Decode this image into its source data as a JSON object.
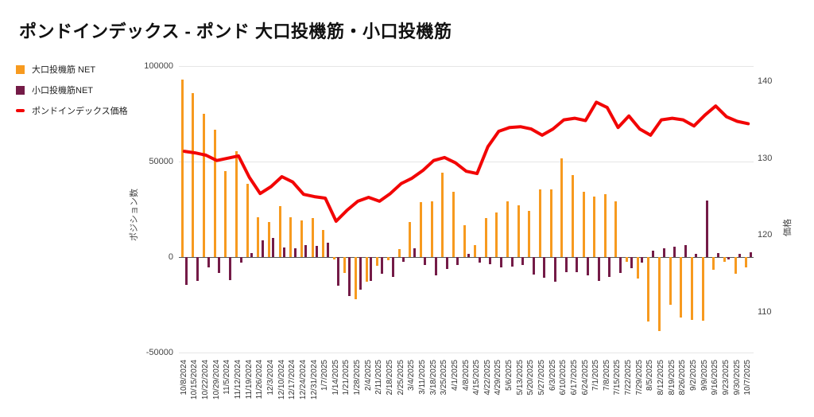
{
  "title": "ポンドインデックス - ポンド 大口投機筋・小口投機筋",
  "legend": [
    {
      "label": "大口投機筋  NET",
      "color": "#F79A1F",
      "kind": "square"
    },
    {
      "label": "小口投機筋NET",
      "color": "#741B47",
      "kind": "square"
    },
    {
      "label": "ポンドインデックス価格",
      "color": "#F20505",
      "kind": "line"
    }
  ],
  "axes": {
    "left": {
      "title": "ポジション数",
      "ticks": [
        100000,
        50000,
        0,
        -50000
      ]
    },
    "right": {
      "title": "価格",
      "ticks": [
        140,
        130,
        120,
        110
      ]
    }
  },
  "colors": {
    "large": "#F79A1F",
    "small": "#741B47",
    "price": "#F20505",
    "grid": "#E6E6E6",
    "zero_line": "#555555",
    "text": "#333333"
  },
  "chart_data": {
    "type": "combo",
    "bar_types": [
      "bar",
      "bar",
      "line"
    ],
    "categories": [
      "10/8/2024",
      "10/15/2024",
      "10/22/2024",
      "10/29/2024",
      "11/5/2024",
      "11/12/2024",
      "11/19/2024",
      "11/26/2024",
      "12/3/2024",
      "12/10/2024",
      "12/17/2024",
      "12/24/2024",
      "12/31/2024",
      "1/7/2025",
      "1/14/2025",
      "1/21/2025",
      "1/28/2025",
      "2/4/2025",
      "2/11/2025",
      "2/18/2025",
      "2/25/2025",
      "3/4/2025",
      "3/11/2025",
      "3/18/2025",
      "3/25/2025",
      "4/1/2025",
      "4/8/2025",
      "4/15/2025",
      "4/22/2025",
      "4/29/2025",
      "5/6/2025",
      "5/13/2025",
      "5/20/2025",
      "5/27/2025",
      "6/3/2025",
      "6/10/2025",
      "6/17/2025",
      "6/24/2025",
      "7/1/2025",
      "7/8/2025",
      "7/15/2025",
      "7/22/2025",
      "7/29/2025",
      "8/5/2025",
      "8/12/2025",
      "8/19/2025",
      "8/26/2025",
      "9/2/2025",
      "9/9/2025",
      "9/16/2025",
      "9/23/2025",
      "9/30/2025",
      "10/7/2025"
    ],
    "series": [
      {
        "name": "大口投機筋  NET",
        "type": "bar",
        "axis": "left",
        "values": [
          93000,
          86000,
          75000,
          66500,
          45000,
          55500,
          38500,
          21000,
          18500,
          26500,
          21000,
          19000,
          20500,
          14000,
          -1300,
          -8500,
          -22000,
          -13000,
          -4700,
          -1700,
          4300,
          18300,
          28800,
          29200,
          44000,
          34200,
          16700,
          6200,
          20400,
          23300,
          29200,
          27100,
          24200,
          35400,
          35400,
          51700,
          42900,
          34200,
          31700,
          33000,
          29200,
          -2700,
          -11200,
          -33700,
          -38700,
          -25000,
          -31700,
          -33100,
          -33300,
          -6500,
          -2500,
          -8700,
          -5400
        ]
      },
      {
        "name": "小口投機筋NET",
        "type": "bar",
        "axis": "left",
        "values": [
          -14500,
          -12500,
          -5500,
          -8200,
          -12100,
          -3000,
          2000,
          8700,
          10000,
          5000,
          4600,
          6200,
          6000,
          7500,
          -14800,
          -20300,
          -17000,
          -12300,
          -8800,
          -10300,
          -2300,
          4600,
          -4300,
          -9600,
          -6200,
          -4300,
          1500,
          -2900,
          -3700,
          -5400,
          -5000,
          -4200,
          -9200,
          -10800,
          -13000,
          -7900,
          -7900,
          -9600,
          -12500,
          -10400,
          -8300,
          -6000,
          -3000,
          3300,
          4600,
          5400,
          6200,
          1700,
          29600,
          2100,
          -1200,
          1700,
          2500
        ]
      },
      {
        "name": "ポンドインデックス価格",
        "type": "line",
        "axis": "right",
        "values": [
          130.9,
          130.7,
          130.4,
          129.7,
          130.0,
          130.3,
          127.5,
          125.4,
          126.3,
          127.6,
          126.9,
          125.3,
          125.0,
          124.8,
          121.8,
          123.2,
          124.4,
          124.9,
          124.4,
          125.4,
          126.7,
          127.4,
          128.4,
          129.7,
          130.1,
          129.4,
          128.3,
          128.0,
          131.5,
          133.5,
          134.0,
          134.1,
          133.8,
          133.0,
          133.8,
          135.0,
          135.2,
          134.9,
          137.3,
          136.6,
          134.0,
          135.5,
          133.8,
          133.0,
          135.0,
          135.2,
          135.0,
          134.2,
          135.6,
          136.8,
          135.4,
          134.8,
          134.5
        ]
      }
    ],
    "title": "ポンドインデックス - ポンド 大口投機筋・小口投機筋",
    "xlabel": "",
    "ylabel_left": "ポジション数",
    "ylabel_right": "価格",
    "ylim_left": [
      -50000,
      100000
    ],
    "ylim_right": [
      104.7,
      142.0
    ],
    "grid": true,
    "legend_position": "top-left"
  }
}
